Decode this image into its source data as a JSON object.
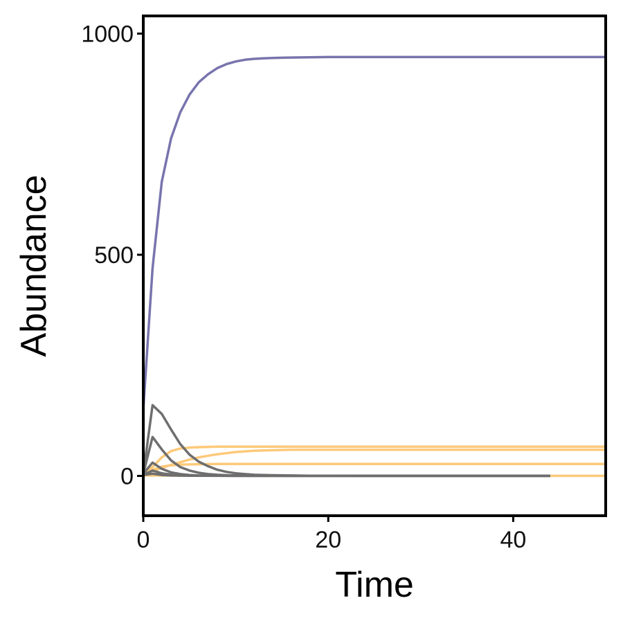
{
  "chart_data": {
    "type": "line",
    "title": "",
    "xlabel": "Time",
    "ylabel": "Abundance",
    "xlim": [
      0,
      50
    ],
    "ylim": [
      -90,
      1040
    ],
    "x_ticks": [
      0,
      20,
      40
    ],
    "y_ticks": [
      0,
      500,
      1000
    ],
    "x_tick_labels": [
      "0",
      "20",
      "40"
    ],
    "y_tick_labels": [
      "0",
      "500",
      "1000"
    ],
    "grid": false,
    "legend": "none",
    "colors": {
      "purple": "#7774AD",
      "gray": "#6E6E6E",
      "orange": "#FDC97A"
    },
    "series": [
      {
        "color": "#7774AD",
        "x": [
          0,
          1,
          2,
          3,
          4,
          5,
          6,
          7,
          8,
          9,
          10,
          11,
          12,
          13,
          14,
          15,
          16,
          18,
          20,
          25,
          30,
          35,
          40,
          45,
          50
        ],
        "y": [
          150,
          470,
          665,
          763,
          822,
          862,
          890,
          908,
          922,
          931,
          937,
          941,
          943,
          944,
          945,
          945.5,
          946,
          946.5,
          947,
          947,
          947,
          947,
          947,
          947,
          947
        ]
      },
      {
        "color": "#FDC97A",
        "x": [
          0,
          1,
          2,
          3,
          4,
          5,
          6,
          8,
          10,
          12,
          15,
          20,
          30,
          40,
          50
        ],
        "y": [
          5,
          20,
          42,
          56,
          62,
          64,
          65,
          66,
          66,
          66,
          66,
          66,
          66,
          66,
          66
        ]
      },
      {
        "color": "#FDC97A",
        "x": [
          0,
          1,
          2,
          3,
          4,
          5,
          6,
          8,
          10,
          12,
          14,
          16,
          20,
          30,
          40,
          50
        ],
        "y": [
          5,
          11,
          18,
          25,
          31,
          37,
          42,
          49,
          54,
          57,
          58,
          59,
          59,
          59,
          59,
          59
        ]
      },
      {
        "color": "#FDC97A",
        "x": [
          0,
          1,
          2,
          3,
          4,
          5,
          6,
          8,
          10,
          15,
          20,
          30,
          40,
          50
        ],
        "y": [
          4,
          14,
          21,
          24,
          25.5,
          26,
          26.5,
          27,
          27,
          27,
          27,
          27,
          27,
          27
        ]
      },
      {
        "color": "#FDC97A",
        "x": [
          0,
          2,
          5,
          10,
          20,
          30,
          40,
          44,
          50
        ],
        "y": [
          1,
          1,
          0.5,
          0.3,
          0.2,
          0.1,
          0.1,
          0.1,
          0.1
        ]
      },
      {
        "color": "#6E6E6E",
        "x": [
          0,
          1,
          2,
          3,
          4,
          5,
          6,
          7,
          8,
          9,
          10,
          11,
          12,
          14,
          16,
          18,
          20,
          25,
          30,
          35,
          40,
          44
        ],
        "y": [
          5,
          160,
          140,
          105,
          72,
          48,
          32,
          22,
          14,
          9,
          6,
          4,
          2.5,
          1.5,
          1,
          0.5,
          0.3,
          0.2,
          0.1,
          0.1,
          0.1,
          0.1
        ]
      },
      {
        "color": "#6E6E6E",
        "x": [
          0,
          1,
          2,
          3,
          4,
          5,
          6,
          7,
          8,
          9,
          10,
          12,
          14,
          16,
          20,
          30,
          44
        ],
        "y": [
          5,
          88,
          60,
          35,
          20,
          12,
          7,
          4,
          2.5,
          1.5,
          1,
          0.5,
          0.3,
          0.2,
          0.1,
          0.1,
          0.1
        ]
      },
      {
        "color": "#6E6E6E",
        "x": [
          0,
          1,
          2,
          3,
          4,
          5,
          6,
          8,
          10,
          20,
          44
        ],
        "y": [
          5,
          30,
          16,
          8,
          4,
          2,
          1,
          0.5,
          0.2,
          0.1,
          0.1
        ]
      },
      {
        "color": "#6E6E6E",
        "x": [
          0,
          1,
          2,
          3,
          4,
          6,
          8,
          10,
          20,
          44
        ],
        "y": [
          3,
          12,
          6,
          3,
          1.5,
          0.5,
          0.3,
          0.2,
          0.1,
          0.1
        ]
      },
      {
        "color": "#6E6E6E",
        "x": [
          0,
          1,
          2,
          3,
          5,
          10,
          20,
          44
        ],
        "y": [
          2,
          5,
          2,
          1,
          0.5,
          0.2,
          0.1,
          0.1
        ]
      }
    ]
  }
}
